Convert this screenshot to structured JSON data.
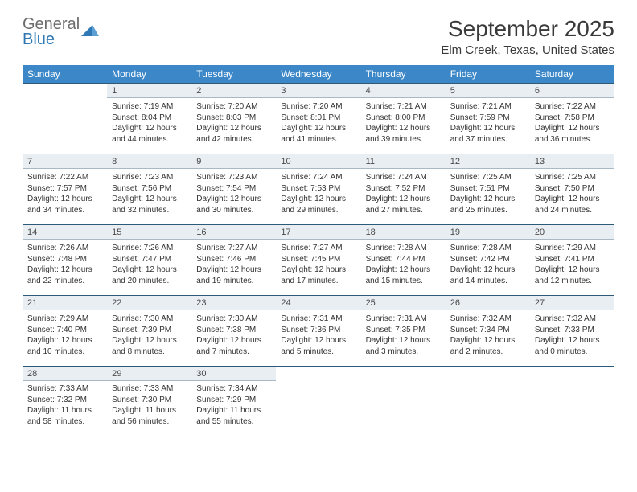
{
  "brand": {
    "name_part1": "General",
    "name_part2": "Blue",
    "color_general": "#6d6d6d",
    "color_blue": "#2e79b5",
    "triangle_color": "#2e79b5"
  },
  "title": "September 2025",
  "location": "Elm Creek, Texas, United States",
  "header_bg": "#3b87c8",
  "header_text_color": "#ffffff",
  "daynum_bg": "#e9eef2",
  "daynum_border_top": "#2e5a7a",
  "dow": [
    "Sunday",
    "Monday",
    "Tuesday",
    "Wednesday",
    "Thursday",
    "Friday",
    "Saturday"
  ],
  "weeks": [
    {
      "nums": [
        "",
        "1",
        "2",
        "3",
        "4",
        "5",
        "6"
      ],
      "cells": [
        {
          "empty": true
        },
        {
          "sunrise": "Sunrise: 7:19 AM",
          "sunset": "Sunset: 8:04 PM",
          "day1": "Daylight: 12 hours",
          "day2": "and 44 minutes."
        },
        {
          "sunrise": "Sunrise: 7:20 AM",
          "sunset": "Sunset: 8:03 PM",
          "day1": "Daylight: 12 hours",
          "day2": "and 42 minutes."
        },
        {
          "sunrise": "Sunrise: 7:20 AM",
          "sunset": "Sunset: 8:01 PM",
          "day1": "Daylight: 12 hours",
          "day2": "and 41 minutes."
        },
        {
          "sunrise": "Sunrise: 7:21 AM",
          "sunset": "Sunset: 8:00 PM",
          "day1": "Daylight: 12 hours",
          "day2": "and 39 minutes."
        },
        {
          "sunrise": "Sunrise: 7:21 AM",
          "sunset": "Sunset: 7:59 PM",
          "day1": "Daylight: 12 hours",
          "day2": "and 37 minutes."
        },
        {
          "sunrise": "Sunrise: 7:22 AM",
          "sunset": "Sunset: 7:58 PM",
          "day1": "Daylight: 12 hours",
          "day2": "and 36 minutes."
        }
      ]
    },
    {
      "nums": [
        "7",
        "8",
        "9",
        "10",
        "11",
        "12",
        "13"
      ],
      "cells": [
        {
          "sunrise": "Sunrise: 7:22 AM",
          "sunset": "Sunset: 7:57 PM",
          "day1": "Daylight: 12 hours",
          "day2": "and 34 minutes."
        },
        {
          "sunrise": "Sunrise: 7:23 AM",
          "sunset": "Sunset: 7:56 PM",
          "day1": "Daylight: 12 hours",
          "day2": "and 32 minutes."
        },
        {
          "sunrise": "Sunrise: 7:23 AM",
          "sunset": "Sunset: 7:54 PM",
          "day1": "Daylight: 12 hours",
          "day2": "and 30 minutes."
        },
        {
          "sunrise": "Sunrise: 7:24 AM",
          "sunset": "Sunset: 7:53 PM",
          "day1": "Daylight: 12 hours",
          "day2": "and 29 minutes."
        },
        {
          "sunrise": "Sunrise: 7:24 AM",
          "sunset": "Sunset: 7:52 PM",
          "day1": "Daylight: 12 hours",
          "day2": "and 27 minutes."
        },
        {
          "sunrise": "Sunrise: 7:25 AM",
          "sunset": "Sunset: 7:51 PM",
          "day1": "Daylight: 12 hours",
          "day2": "and 25 minutes."
        },
        {
          "sunrise": "Sunrise: 7:25 AM",
          "sunset": "Sunset: 7:50 PM",
          "day1": "Daylight: 12 hours",
          "day2": "and 24 minutes."
        }
      ]
    },
    {
      "nums": [
        "14",
        "15",
        "16",
        "17",
        "18",
        "19",
        "20"
      ],
      "cells": [
        {
          "sunrise": "Sunrise: 7:26 AM",
          "sunset": "Sunset: 7:48 PM",
          "day1": "Daylight: 12 hours",
          "day2": "and 22 minutes."
        },
        {
          "sunrise": "Sunrise: 7:26 AM",
          "sunset": "Sunset: 7:47 PM",
          "day1": "Daylight: 12 hours",
          "day2": "and 20 minutes."
        },
        {
          "sunrise": "Sunrise: 7:27 AM",
          "sunset": "Sunset: 7:46 PM",
          "day1": "Daylight: 12 hours",
          "day2": "and 19 minutes."
        },
        {
          "sunrise": "Sunrise: 7:27 AM",
          "sunset": "Sunset: 7:45 PM",
          "day1": "Daylight: 12 hours",
          "day2": "and 17 minutes."
        },
        {
          "sunrise": "Sunrise: 7:28 AM",
          "sunset": "Sunset: 7:44 PM",
          "day1": "Daylight: 12 hours",
          "day2": "and 15 minutes."
        },
        {
          "sunrise": "Sunrise: 7:28 AM",
          "sunset": "Sunset: 7:42 PM",
          "day1": "Daylight: 12 hours",
          "day2": "and 14 minutes."
        },
        {
          "sunrise": "Sunrise: 7:29 AM",
          "sunset": "Sunset: 7:41 PM",
          "day1": "Daylight: 12 hours",
          "day2": "and 12 minutes."
        }
      ]
    },
    {
      "nums": [
        "21",
        "22",
        "23",
        "24",
        "25",
        "26",
        "27"
      ],
      "cells": [
        {
          "sunrise": "Sunrise: 7:29 AM",
          "sunset": "Sunset: 7:40 PM",
          "day1": "Daylight: 12 hours",
          "day2": "and 10 minutes."
        },
        {
          "sunrise": "Sunrise: 7:30 AM",
          "sunset": "Sunset: 7:39 PM",
          "day1": "Daylight: 12 hours",
          "day2": "and 8 minutes."
        },
        {
          "sunrise": "Sunrise: 7:30 AM",
          "sunset": "Sunset: 7:38 PM",
          "day1": "Daylight: 12 hours",
          "day2": "and 7 minutes."
        },
        {
          "sunrise": "Sunrise: 7:31 AM",
          "sunset": "Sunset: 7:36 PM",
          "day1": "Daylight: 12 hours",
          "day2": "and 5 minutes."
        },
        {
          "sunrise": "Sunrise: 7:31 AM",
          "sunset": "Sunset: 7:35 PM",
          "day1": "Daylight: 12 hours",
          "day2": "and 3 minutes."
        },
        {
          "sunrise": "Sunrise: 7:32 AM",
          "sunset": "Sunset: 7:34 PM",
          "day1": "Daylight: 12 hours",
          "day2": "and 2 minutes."
        },
        {
          "sunrise": "Sunrise: 7:32 AM",
          "sunset": "Sunset: 7:33 PM",
          "day1": "Daylight: 12 hours",
          "day2": "and 0 minutes."
        }
      ]
    },
    {
      "nums": [
        "28",
        "29",
        "30",
        "",
        "",
        "",
        ""
      ],
      "cells": [
        {
          "sunrise": "Sunrise: 7:33 AM",
          "sunset": "Sunset: 7:32 PM",
          "day1": "Daylight: 11 hours",
          "day2": "and 58 minutes."
        },
        {
          "sunrise": "Sunrise: 7:33 AM",
          "sunset": "Sunset: 7:30 PM",
          "day1": "Daylight: 11 hours",
          "day2": "and 56 minutes."
        },
        {
          "sunrise": "Sunrise: 7:34 AM",
          "sunset": "Sunset: 7:29 PM",
          "day1": "Daylight: 11 hours",
          "day2": "and 55 minutes."
        },
        {
          "empty": true
        },
        {
          "empty": true
        },
        {
          "empty": true
        },
        {
          "empty": true
        }
      ]
    }
  ]
}
